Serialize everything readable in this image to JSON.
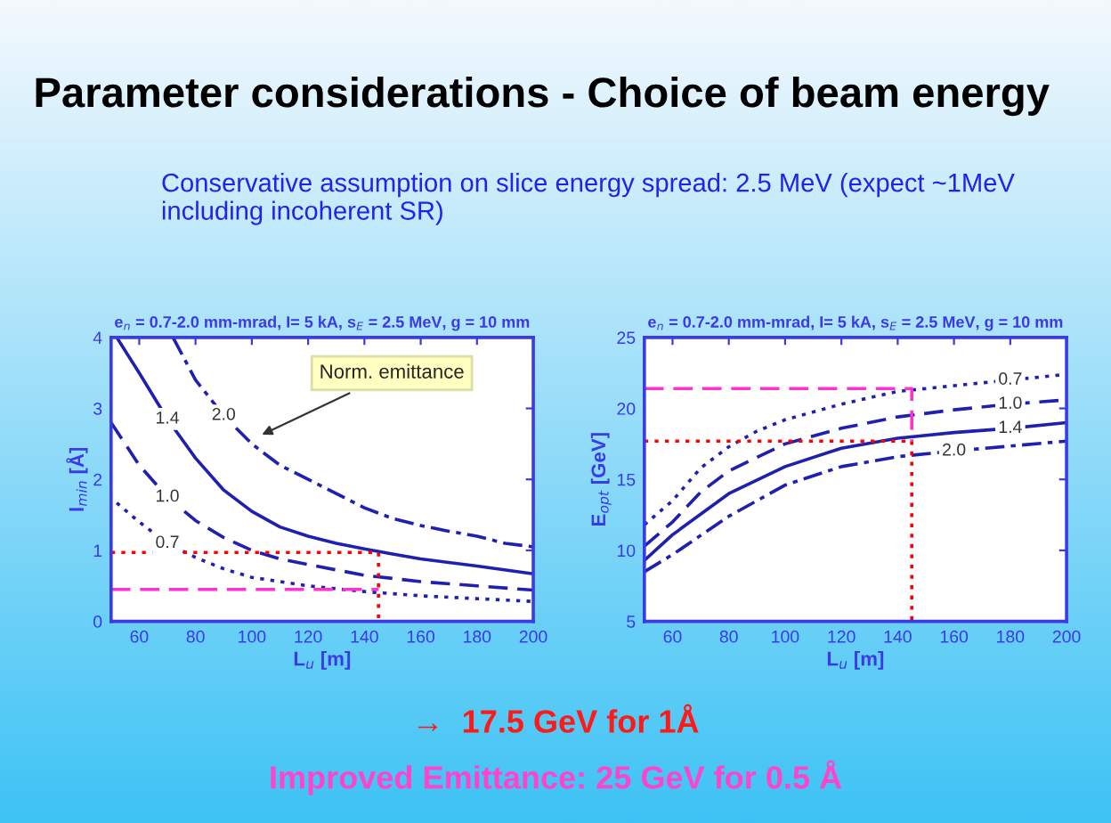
{
  "chart_data": [
    {
      "type": "other",
      "title": "Parameter considerations - Choice of beam energy",
      "subtitle": "Conservative assumption on slice energy spread: 2.5 MeV (expect ~1MeV including incoherent SR)"
    },
    {
      "type": "line",
      "title": "e$_{n}$ = 0.7-2.0 mm-mrad, I= 5 kA, s$_{E}$ = 2.5 MeV, g = 10 mm",
      "xlabel": "L$_{u}$ [m]",
      "ylabel": "l$_{min}$ [Å]",
      "xlim": [
        50,
        200
      ],
      "xticks": [
        60,
        80,
        100,
        120,
        140,
        160,
        180,
        200
      ],
      "ylim": [
        0,
        4
      ],
      "yticks": [
        0,
        1,
        2,
        3,
        4
      ],
      "grid": false,
      "legend": false,
      "series": [
        {
          "name": "2.0",
          "color": "#1f1fb0",
          "line_style": "dashdot",
          "x": [
            72,
            80,
            90,
            100,
            110,
            120,
            130,
            140,
            150,
            160,
            170,
            180,
            190,
            200
          ],
          "values": [
            4.0,
            3.4,
            2.9,
            2.5,
            2.2,
            2.0,
            1.8,
            1.6,
            1.45,
            1.35,
            1.27,
            1.2,
            1.1,
            1.05
          ]
        },
        {
          "name": "1.4",
          "color": "#1f1fb0",
          "line_style": "solid",
          "x": [
            52,
            60,
            70,
            80,
            90,
            100,
            110,
            120,
            130,
            140,
            150,
            160,
            180,
            200
          ],
          "values": [
            4.0,
            3.5,
            2.85,
            2.3,
            1.85,
            1.55,
            1.33,
            1.2,
            1.1,
            1.02,
            0.95,
            0.88,
            0.78,
            0.67
          ]
        },
        {
          "name": "1.0",
          "color": "#1f1fb0",
          "line_style": "dashed",
          "x": [
            50,
            60,
            70,
            80,
            90,
            100,
            110,
            120,
            140,
            160,
            180,
            200
          ],
          "values": [
            2.8,
            2.2,
            1.75,
            1.42,
            1.18,
            1.0,
            0.88,
            0.8,
            0.65,
            0.56,
            0.5,
            0.44
          ]
        },
        {
          "name": "0.7",
          "color": "#1f1fb0",
          "line_style": "dotted",
          "x": [
            52,
            60,
            70,
            80,
            90,
            100,
            120,
            140,
            160,
            180,
            200
          ],
          "values": [
            1.67,
            1.4,
            1.1,
            0.9,
            0.74,
            0.62,
            0.5,
            0.42,
            0.36,
            0.32,
            0.28
          ]
        },
        {
          "color": "#ff0000",
          "line_style": "dotted",
          "x": [
            50,
            145,
            145
          ],
          "values": [
            0.97,
            0.97,
            0
          ]
        },
        {
          "color": "#ff33cc",
          "line_style": "dashed",
          "x": [
            50,
            145
          ],
          "values": [
            0.45,
            0.45
          ]
        }
      ],
      "annotations": [
        {
          "text": "Norm. emittance",
          "x": 102,
          "y": 2.6
        }
      ]
    },
    {
      "type": "line",
      "title": "e$_{n}$ = 0.7-2.0 mm-mrad, I= 5 kA, s$_{E}$ = 2.5 MeV, g = 10 mm",
      "xlabel": "L$_{u}$ [m]",
      "ylabel": "E$_{opt}$ [GeV]",
      "xlim": [
        50,
        200
      ],
      "xticks": [
        60,
        80,
        100,
        120,
        140,
        160,
        180,
        200
      ],
      "ylim": [
        5,
        25
      ],
      "yticks": [
        5,
        10,
        15,
        20,
        25
      ],
      "grid": false,
      "legend": false,
      "series": [
        {
          "name": "0.7",
          "color": "#1f1fb0",
          "line_style": "dotted",
          "x": [
            50,
            60,
            70,
            80,
            90,
            100,
            120,
            140,
            160,
            180,
            200
          ],
          "values": [
            11.8,
            13.5,
            15.8,
            17.3,
            18.4,
            19.2,
            20.3,
            21.2,
            21.6,
            22.0,
            22.4
          ]
        },
        {
          "name": "1.0",
          "color": "#1f1fb0",
          "line_style": "dashed",
          "x": [
            50,
            60,
            70,
            80,
            100,
            120,
            140,
            160,
            180,
            200
          ],
          "values": [
            10.3,
            12.0,
            14.1,
            15.6,
            17.5,
            18.6,
            19.4,
            19.9,
            20.3,
            20.6
          ]
        },
        {
          "name": "1.4",
          "color": "#1f1fb0",
          "line_style": "solid",
          "x": [
            50,
            60,
            80,
            100,
            120,
            140,
            160,
            180,
            200
          ],
          "values": [
            9.3,
            11.1,
            14.0,
            15.9,
            17.2,
            17.9,
            18.3,
            18.6,
            19.0
          ]
        },
        {
          "name": "2.0",
          "color": "#1f1fb0",
          "line_style": "dashdot",
          "x": [
            50,
            60,
            80,
            100,
            120,
            140,
            160,
            200
          ],
          "values": [
            8.5,
            9.7,
            12.4,
            14.6,
            15.9,
            16.6,
            17.0,
            17.7
          ]
        },
        {
          "color": "#ff0000",
          "line_style": "dotted",
          "x": [
            50,
            145,
            145
          ],
          "values": [
            17.7,
            17.7,
            5
          ]
        },
        {
          "color": "#ff33cc",
          "line_style": "dashed",
          "x": [
            50,
            145,
            145
          ],
          "values": [
            21.4,
            21.4,
            17.7
          ]
        }
      ]
    },
    {
      "type": "other",
      "annotations": [
        "→  17.5 GeV for 1Å",
        "Improved Emittance: 25 GeV for 0.5 Å"
      ]
    }
  ]
}
